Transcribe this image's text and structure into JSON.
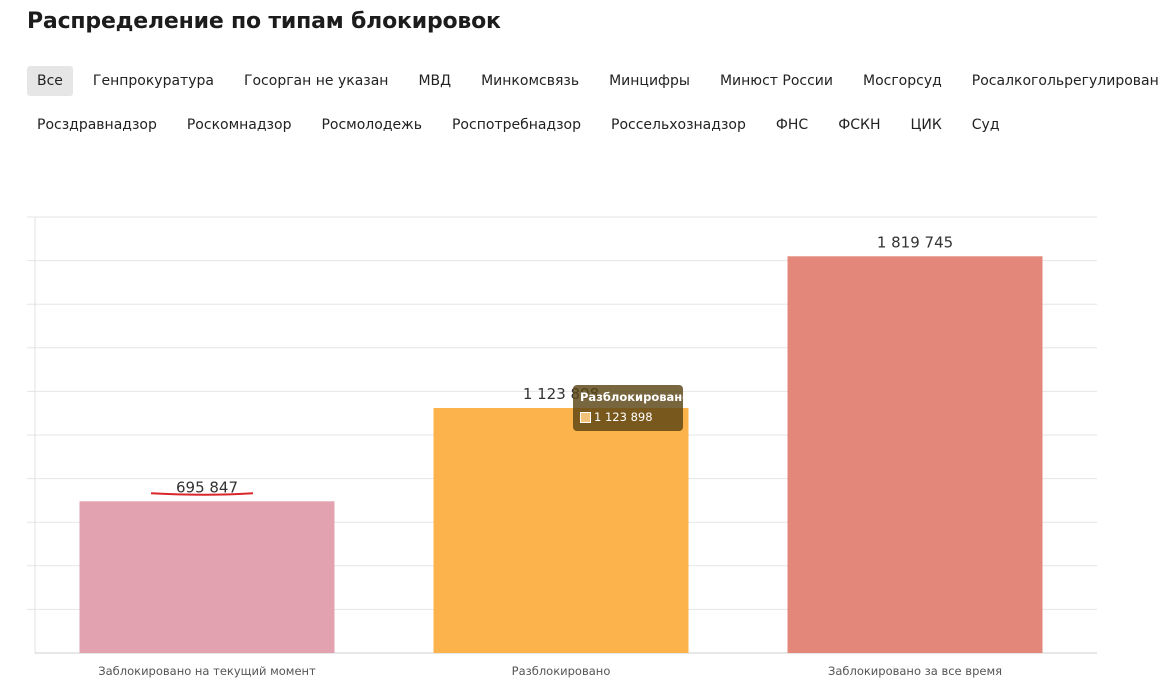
{
  "page": {
    "title": "Распределение по типам блокировок"
  },
  "filters": {
    "row1": [
      "Все",
      "Генпрокуратура",
      "Госорган не указан",
      "МВД",
      "Минкомсвязь",
      "Минцифры",
      "Минюст России",
      "Мосгорсуд",
      "Росалкогольрегулирование"
    ],
    "row2": [
      "Росздравнадзор",
      "Роскомнадзор",
      "Росмолодежь",
      "Роспотребнадзор",
      "Россельхознадзор",
      "ФНС",
      "ФСКН",
      "ЦИК",
      "Суд"
    ],
    "active": "Все"
  },
  "chart_data": {
    "type": "bar",
    "categories": [
      "Заблокировано на текущий момент",
      "Разблокировано",
      "Заблокировано за все время"
    ],
    "values": [
      695847,
      1123898,
      1819745
    ],
    "value_labels": [
      "695 847",
      "1 123 898",
      "1 819 745"
    ],
    "colors": [
      "#e3a2b0",
      "#fdb34b",
      "#e28779"
    ],
    "ylim": [
      0,
      2000000
    ],
    "grid": true,
    "title": "",
    "xlabel": "",
    "ylabel": ""
  },
  "tooltip": {
    "title": "Разблокировано",
    "value": "1 123 898",
    "swatch_color": "#f2c27a"
  },
  "annotation": {
    "underline_color": "#d9262b"
  }
}
